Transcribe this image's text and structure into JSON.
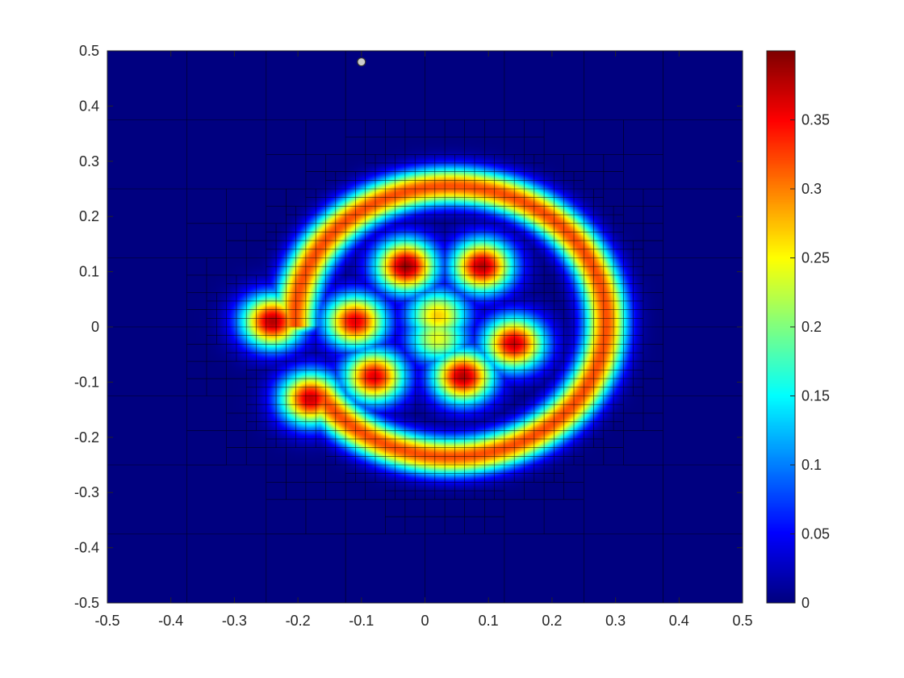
{
  "chart_data": {
    "type": "heatmap",
    "title": "",
    "xlabel": "",
    "ylabel": "",
    "xlim": [
      -0.5,
      0.5
    ],
    "ylim": [
      -0.5,
      0.5
    ],
    "xticks": [
      "-0.5",
      "-0.4",
      "-0.3",
      "-0.2",
      "-0.1",
      "0",
      "0.1",
      "0.2",
      "0.3",
      "0.4",
      "0.5"
    ],
    "yticks": [
      "0.5",
      "0.4",
      "0.3",
      "0.2",
      "0.1",
      "0",
      "-0.1",
      "-0.2",
      "-0.3",
      "-0.4",
      "-0.5"
    ],
    "colormap": "jet",
    "color_range": [
      0,
      0.4
    ],
    "colorbar_ticks": [
      "0.35",
      "0.3",
      "0.25",
      "0.2",
      "0.15",
      "0.1",
      "0.05",
      "0"
    ],
    "grid_overlay": "adaptive quadtree mesh, refined around the field",
    "field": {
      "description_units": "values in colour-scale units",
      "outer_ring": {
        "center": [
          0.04,
          0.01
        ],
        "radius": 0.245,
        "width": 0.05,
        "peak": 0.32,
        "gap_angle_deg": [
          182,
          212
        ]
      },
      "hotspots": [
        {
          "x": -0.24,
          "y": 0.01,
          "peak": 0.38
        },
        {
          "x": -0.18,
          "y": -0.13,
          "peak": 0.37
        },
        {
          "x": -0.11,
          "y": 0.01,
          "peak": 0.36
        },
        {
          "x": -0.08,
          "y": -0.09,
          "peak": 0.36
        },
        {
          "x": -0.03,
          "y": 0.11,
          "peak": 0.39
        },
        {
          "x": 0.09,
          "y": 0.11,
          "peak": 0.38
        },
        {
          "x": 0.02,
          "y": 0.02,
          "peak": 0.27
        },
        {
          "x": 0.14,
          "y": -0.03,
          "peak": 0.37
        },
        {
          "x": 0.06,
          "y": -0.09,
          "peak": 0.38
        },
        {
          "x": 0.02,
          "y": -0.02,
          "peak": 0.24
        }
      ]
    },
    "marker": {
      "x": -0.1,
      "y": 0.48,
      "color": "#cccccc"
    }
  }
}
